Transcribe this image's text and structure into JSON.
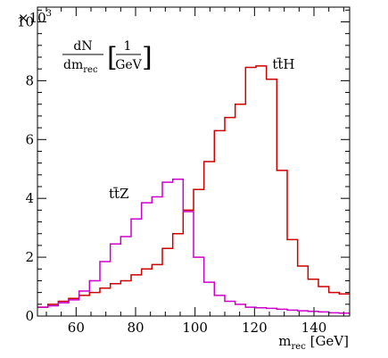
{
  "chart_data": {
    "type": "line",
    "style": "step-histogram",
    "xlabel_main": "m",
    "xlabel_sub": "rec",
    "xlabel_unit": " [GeV]",
    "ylabel_num": "dN",
    "ylabel_den_main": "dm",
    "ylabel_den_sub": "rec",
    "ylabel_unit_num": "1",
    "ylabel_unit_den": "GeV",
    "y_multiplier_base": "×10",
    "y_multiplier_exp": "3",
    "xlim": [
      47,
      152
    ],
    "ylim": [
      0,
      10500
    ],
    "x_ticks": [
      60,
      80,
      100,
      120,
      140
    ],
    "y_ticks": [
      0,
      2000,
      4000,
      6000,
      8000,
      10000
    ],
    "x_tick_labels": [
      "60",
      "80",
      "100",
      "120",
      "140"
    ],
    "y_tick_labels": [
      "0",
      "2",
      "4",
      "6",
      "8",
      "10"
    ],
    "bin_edges": [
      47,
      50.5,
      54,
      57.5,
      61,
      64.5,
      68,
      71.5,
      75,
      78.5,
      82,
      85.5,
      89,
      92.5,
      96,
      99.5,
      103,
      106.5,
      110,
      113.5,
      117,
      120.5,
      124,
      127.5,
      131,
      134.5,
      138,
      141.5,
      145,
      148.5,
      152
    ],
    "series": [
      {
        "name": "tt̄H",
        "color": "#cc0000",
        "values": [
          300,
          400,
          500,
          600,
          700,
          800,
          950,
          1100,
          1200,
          1400,
          1600,
          1750,
          2300,
          2800,
          3600,
          4300,
          5250,
          6300,
          6750,
          7200,
          8450,
          8500,
          8050,
          4950,
          2600,
          1700,
          1250,
          1000,
          800,
          750
        ]
      },
      {
        "name": "tt̄Z",
        "color": "#cc00cc",
        "values": [
          300,
          350,
          450,
          550,
          850,
          1200,
          1850,
          2450,
          2700,
          3300,
          3850,
          4050,
          4550,
          4650,
          3550,
          2000,
          1150,
          700,
          500,
          400,
          300,
          280,
          260,
          230,
          200,
          180,
          160,
          140,
          110,
          100
        ]
      }
    ],
    "annotations": [
      {
        "series": "tt̄H",
        "base": "t",
        "bar_char": "t",
        "tail": "H",
        "x": 126,
        "y": 8400
      },
      {
        "series": "tt̄Z",
        "base": "t",
        "bar_char": "t",
        "tail": "Z",
        "x": 71,
        "y": 4000
      }
    ]
  }
}
